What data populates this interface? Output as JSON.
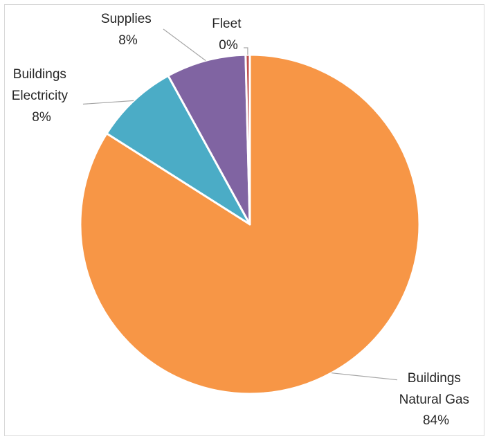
{
  "chart_data": {
    "type": "pie",
    "title": "",
    "slices": [
      {
        "name": "Buildings Natural Gas",
        "label_lines": [
          "Buildings",
          "Natural Gas"
        ],
        "percent_label": "84%",
        "value": 84,
        "color": "#F79646"
      },
      {
        "name": "Buildings Electricity",
        "label_lines": [
          "Buildings",
          "Electricity"
        ],
        "percent_label": "8%",
        "value": 8,
        "color": "#4BACC6"
      },
      {
        "name": "Supplies",
        "label_lines": [
          "Supplies"
        ],
        "percent_label": "8%",
        "value": 7.6,
        "color": "#8064A2"
      },
      {
        "name": "Fleet",
        "label_lines": [
          "Fleet"
        ],
        "percent_label": "0%",
        "value": 0.4,
        "color": "#C0504D"
      }
    ],
    "start_angle_deg": 0,
    "direction": "clockwise",
    "legend": "none",
    "data_labels": "outside-with-leader-lines"
  }
}
